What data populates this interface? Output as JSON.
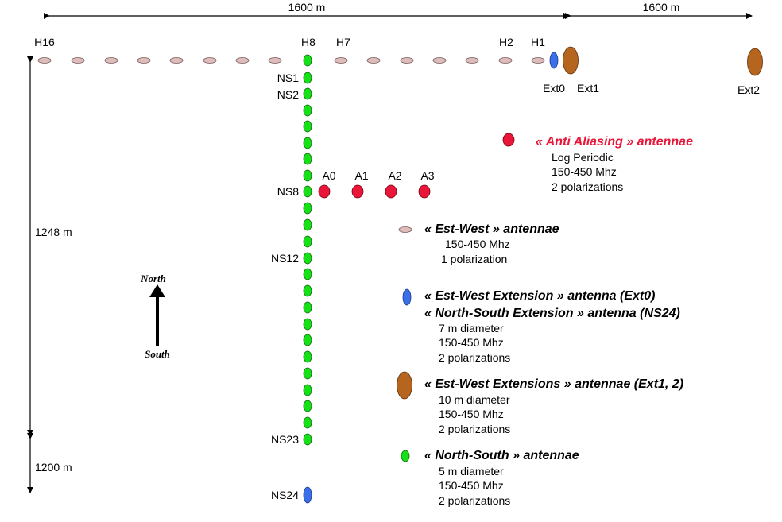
{
  "dimensions": {
    "top_left": "1600 m",
    "top_right": "1600 m",
    "left_upper": "1248 m",
    "left_lower": "1200 m"
  },
  "ew_labels": [
    "H16",
    "H8",
    "H7",
    "H2",
    "H1"
  ],
  "ns_labels": [
    "NS1",
    "NS2",
    "NS8",
    "NS12",
    "NS23",
    "NS24"
  ],
  "anti_alias_labels": [
    "A0",
    "A1",
    "A2",
    "A3"
  ],
  "ext_labels": [
    "Ext0",
    "Ext1",
    "Ext2"
  ],
  "compass": {
    "north": "North",
    "south": "South"
  },
  "colors": {
    "ew": "#ddbcbc",
    "ns": "#18e018",
    "anti_alias": "#e8173a",
    "ext_blue": "#3a6fe8",
    "ext_brown": "#b5651d"
  },
  "legend": {
    "anti_aliasing": {
      "title": "« Anti Aliasing » antennae",
      "lines": [
        "Log Periodic",
        "150-450 Mhz",
        "2 polarizations"
      ]
    },
    "est_west": {
      "title": "« Est-West » antennae",
      "lines": [
        "150-450 Mhz",
        "1 polarization"
      ]
    },
    "ext0": {
      "title": "« Est-West Extension » antenna (Ext0)",
      "title2": "« North-South Extension » antenna (NS24)",
      "lines": [
        "7 m diameter",
        "150-450 Mhz",
        "2 polarizations"
      ]
    },
    "ext12": {
      "title": "« Est-West Extensions » antennae (Ext1, 2)",
      "lines": [
        "10 m diameter",
        "150-450 Mhz",
        "2 polarizations"
      ]
    },
    "north_south": {
      "title": "« North-South » antennae",
      "lines": [
        "5 m diameter",
        "150-450 Mhz",
        "2 polarizations"
      ]
    }
  }
}
